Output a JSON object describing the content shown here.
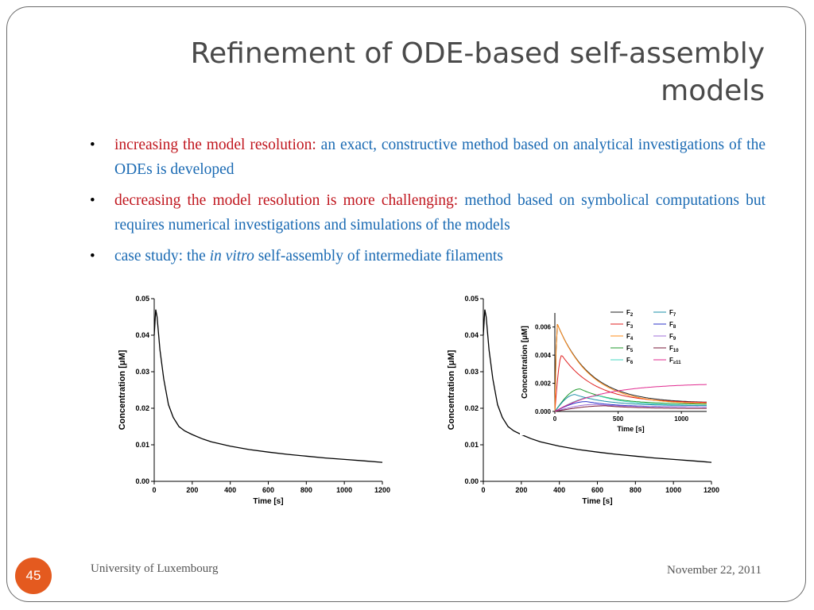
{
  "slide": {
    "title": "Refinement of ODE-based self-assembly models",
    "bullets": [
      {
        "lead": "increasing the model resolution:",
        "rest": " an exact, constructive method based on analytical investigations of the ODEs is developed"
      },
      {
        "lead": "decreasing the model resolution is more challenging:",
        "rest": " method based on symbolical computations but requires numerical investigations and simulations of the models"
      },
      {
        "pre": "case study: the ",
        "italic": "in vitro",
        "post": " self-assembly of intermediate filaments"
      }
    ],
    "footer_left": "University of Luxembourg",
    "footer_right": "November 22, 2011",
    "page_number": "45"
  },
  "chart_data": [
    {
      "type": "line",
      "xlabel": "Time [s]",
      "ylabel": "Concentration [μM]",
      "xlim": [
        0,
        1200
      ],
      "ylim": [
        0,
        0.05
      ],
      "xticks": [
        "0",
        "200",
        "400",
        "600",
        "800",
        "1000",
        "1200"
      ],
      "yticks": [
        "0.00",
        "0.01",
        "0.02",
        "0.03",
        "0.04",
        "0.05"
      ],
      "series": [
        {
          "x": [
            0,
            8,
            15,
            30,
            50,
            75,
            100,
            130,
            160,
            200,
            250,
            300,
            400,
            500,
            600,
            700,
            800,
            900,
            1000,
            1100,
            1200
          ],
          "y": [
            0.04,
            0.047,
            0.045,
            0.036,
            0.028,
            0.021,
            0.0175,
            0.015,
            0.0138,
            0.0128,
            0.0117,
            0.0108,
            0.0096,
            0.0087,
            0.008,
            0.0074,
            0.0069,
            0.0064,
            0.006,
            0.0056,
            0.0052
          ]
        }
      ]
    },
    {
      "type": "line",
      "xlabel": "Time [s]",
      "ylabel": "Concentration [μM]",
      "xlim": [
        0,
        1200
      ],
      "ylim": [
        0,
        0.05
      ],
      "xticks": [
        "0",
        "200",
        "400",
        "600",
        "800",
        "1000",
        "1200"
      ],
      "yticks": [
        "0.00",
        "0.01",
        "0.02",
        "0.03",
        "0.04",
        "0.05"
      ],
      "series": [
        {
          "x": [
            0,
            8,
            15,
            30,
            50,
            75,
            100,
            130,
            160,
            200,
            250,
            300,
            400,
            500,
            600,
            700,
            800,
            900,
            1000,
            1100,
            1200
          ],
          "y": [
            0.04,
            0.047,
            0.045,
            0.036,
            0.028,
            0.021,
            0.0175,
            0.015,
            0.0138,
            0.0128,
            0.0117,
            0.0108,
            0.0096,
            0.0087,
            0.008,
            0.0074,
            0.0069,
            0.0064,
            0.006,
            0.0056,
            0.0052
          ]
        }
      ]
    },
    {
      "type": "line",
      "inset": true,
      "xlabel": "Time [s]",
      "ylabel": "Concentration [μM]",
      "xlim": [
        0,
        1200
      ],
      "ylim": [
        0,
        0.007
      ],
      "xticks": [
        "0",
        "500",
        "1000"
      ],
      "yticks": [
        "0.000",
        "0.002",
        "0.004",
        "0.006"
      ],
      "legend_position": "top-right",
      "series": [
        {
          "name": "F2",
          "label_main": "F",
          "label_sub": "2",
          "color": "#222222",
          "peak": 0.0062,
          "tpeak": 20,
          "final": 0.0006
        },
        {
          "name": "F3",
          "label_main": "F",
          "label_sub": "3",
          "color": "#e02020",
          "peak": 0.004,
          "tpeak": 55,
          "final": 0.0006
        },
        {
          "name": "F4",
          "label_main": "F",
          "label_sub": "4",
          "color": "#ff8c1a",
          "peak": 0.0062,
          "tpeak": 20,
          "final": 0.0005
        },
        {
          "name": "F5",
          "label_main": "F",
          "label_sub": "5",
          "color": "#1f9a2e",
          "peak": 0.0016,
          "tpeak": 200,
          "final": 0.0005
        },
        {
          "name": "F6",
          "label_main": "F",
          "label_sub": "6",
          "color": "#45d7c0",
          "peak": 0.0011,
          "tpeak": 350,
          "final": 0.0004
        },
        {
          "name": "F7",
          "label_main": "F",
          "label_sub": "7",
          "color": "#1b8fa8",
          "peak": 0.0012,
          "tpeak": 160,
          "final": 0.0004
        },
        {
          "name": "F8",
          "label_main": "F",
          "label_sub": "8",
          "color": "#2d34c8",
          "peak": 0.0007,
          "tpeak": 250,
          "final": 0.0003
        },
        {
          "name": "F9",
          "label_main": "F",
          "label_sub": "9",
          "color": "#a070d8",
          "peak": 0.0005,
          "tpeak": 320,
          "final": 0.0003
        },
        {
          "name": "F10",
          "label_main": "F",
          "label_sub": "10",
          "color": "#7a1a3a",
          "peak": 0.0004,
          "tpeak": 400,
          "final": 0.0002
        },
        {
          "name": "F≥11",
          "label_main": "F",
          "label_sub": "≥11",
          "color": "#e02a8f",
          "rising": true,
          "final": 0.002
        }
      ]
    }
  ]
}
